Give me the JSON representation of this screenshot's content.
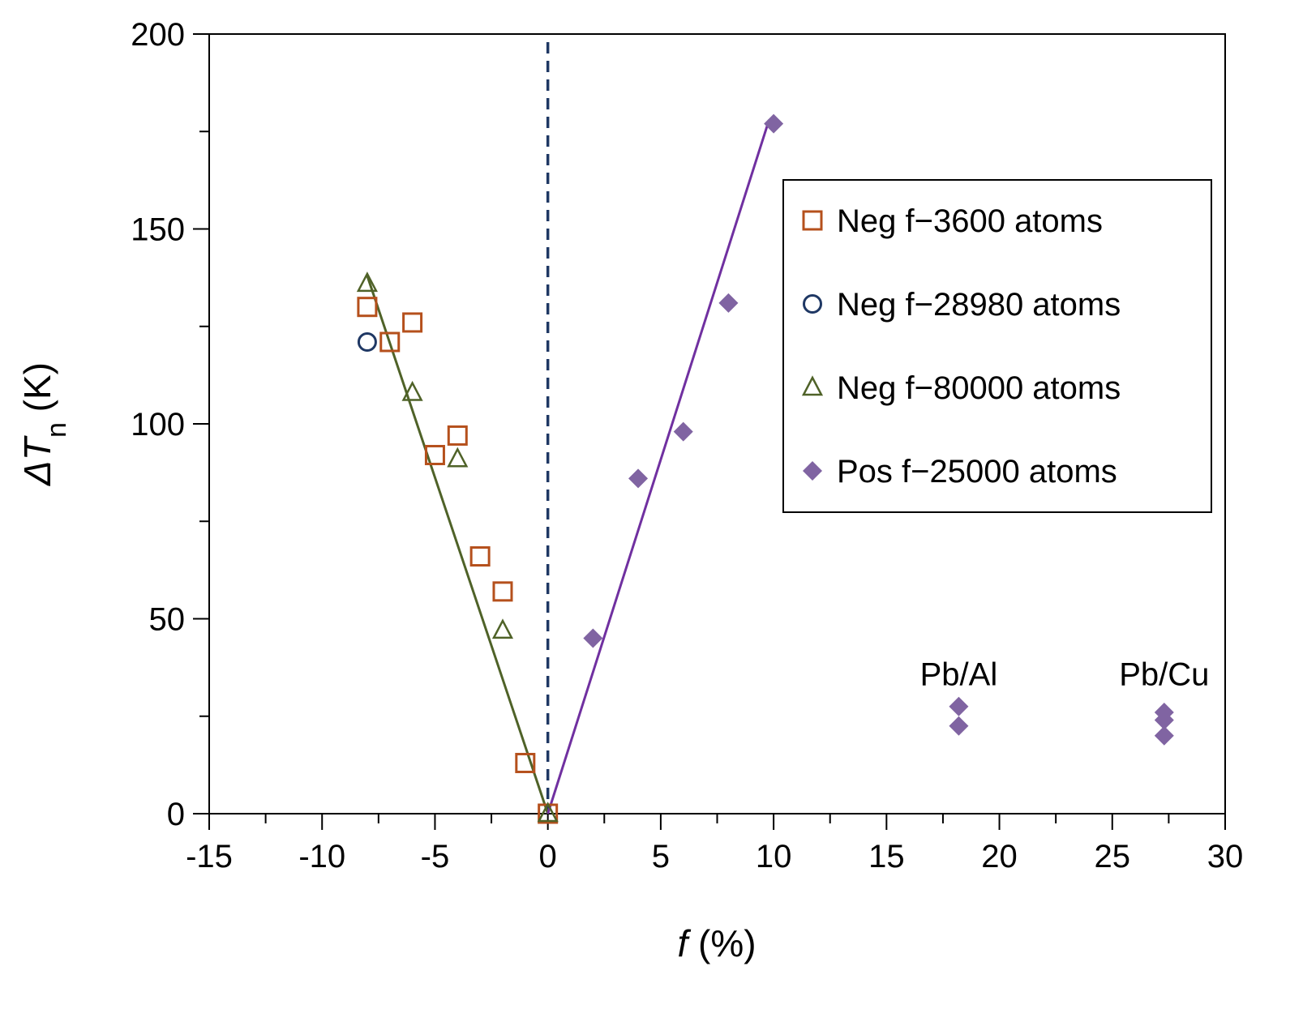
{
  "chart_data": {
    "type": "scatter",
    "title": "",
    "xlabel": {
      "italic": "f",
      "rest": " (%)"
    },
    "ylabel": {
      "prefix": "ΔT",
      "subscript": "n",
      "suffix": " (K)"
    },
    "xlim": [
      -15,
      30
    ],
    "ylim": [
      0,
      200
    ],
    "xticks": [
      -15,
      -10,
      -5,
      0,
      5,
      10,
      15,
      20,
      25,
      30
    ],
    "yticks": [
      0,
      50,
      100,
      150,
      200
    ],
    "x_tick_labels": [
      "-15",
      "-10",
      "-5",
      "0",
      "5",
      "10",
      "15",
      "20",
      "25",
      "30"
    ],
    "y_tick_labels": [
      "0",
      "50",
      "100",
      "150",
      "200"
    ],
    "grid": false,
    "legend_position": "upper-right",
    "reference_line": {
      "x": 0,
      "style": "dashed",
      "color": "#1f3864"
    },
    "series": [
      {
        "name": "Neg f−3600 atoms",
        "marker": "open-square",
        "color": "#b5501c",
        "points": [
          [
            -8,
            130
          ],
          [
            -7,
            121
          ],
          [
            -6,
            126
          ],
          [
            -5,
            92
          ],
          [
            -4,
            97
          ],
          [
            -3,
            66
          ],
          [
            -2,
            57
          ],
          [
            -1,
            13
          ],
          [
            0,
            0
          ]
        ]
      },
      {
        "name": "Neg f−28980 atoms",
        "marker": "open-circle",
        "color": "#1f3864",
        "points": [
          [
            -8,
            121
          ]
        ]
      },
      {
        "name": "Neg f−80000 atoms",
        "marker": "open-triangle",
        "color": "#4f6228",
        "points": [
          [
            -8,
            136
          ],
          [
            -6,
            108
          ],
          [
            -4,
            91
          ],
          [
            -2,
            47
          ],
          [
            0,
            0
          ]
        ]
      },
      {
        "name": "Pos f−25000 atoms",
        "marker": "filled-diamond",
        "color": "#8064a2",
        "points": [
          [
            2,
            45
          ],
          [
            4,
            86
          ],
          [
            6,
            98
          ],
          [
            8,
            131
          ],
          [
            10,
            177
          ],
          [
            18.2,
            27.5
          ],
          [
            18.2,
            22.5
          ],
          [
            27.3,
            26
          ],
          [
            27.3,
            24
          ],
          [
            27.3,
            20
          ]
        ]
      }
    ],
    "fit_lines": [
      {
        "name": "negative-fit",
        "color": "#4f6228",
        "points": [
          [
            -8,
            138
          ],
          [
            0,
            0
          ]
        ]
      },
      {
        "name": "positive-fit",
        "color": "#7030a0",
        "points": [
          [
            0,
            0
          ],
          [
            9.8,
            178
          ]
        ]
      }
    ],
    "annotations": [
      {
        "text": "Pb/Al",
        "x": 18.2,
        "y": 33
      },
      {
        "text": "Pb/Cu",
        "x": 27.3,
        "y": 33
      }
    ]
  }
}
